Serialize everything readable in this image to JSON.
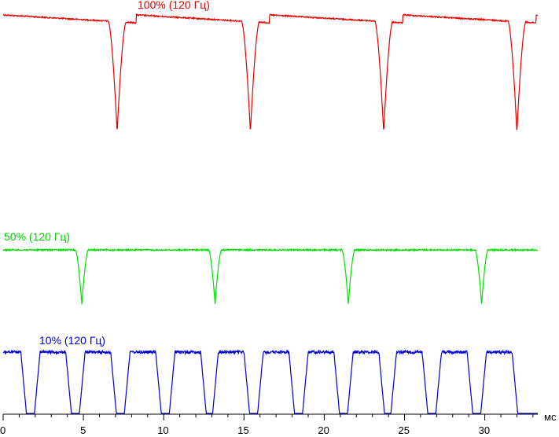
{
  "chart_data": {
    "type": "line",
    "title": "",
    "xlabel": "мс",
    "ylabel": "",
    "xlim": [
      0,
      33.3
    ],
    "xticks": [
      0,
      5,
      10,
      15,
      20,
      25,
      30
    ],
    "grid": false,
    "series": [
      {
        "name": "100% (120 Гц)",
        "color": "#e00000",
        "shape": "dips",
        "dip_centers": [
          7.1,
          15.4,
          23.7,
          32.0
        ],
        "dip_half_width": 0.55
      },
      {
        "name": "50% (120 Гц)",
        "color": "#00e000",
        "shape": "dips",
        "dip_centers": [
          4.9,
          13.2,
          21.5,
          29.8
        ],
        "dip_half_width": 0.4
      },
      {
        "name": "10% (120 Гц)",
        "color": "#0000d0",
        "shape": "pulses",
        "pulse_centers": [
          0.3,
          3.1,
          5.9,
          8.7,
          11.5,
          14.2,
          17.0,
          19.8,
          22.6,
          25.3,
          28.1,
          30.9
        ],
        "pulse_width": 1.6
      }
    ]
  }
}
